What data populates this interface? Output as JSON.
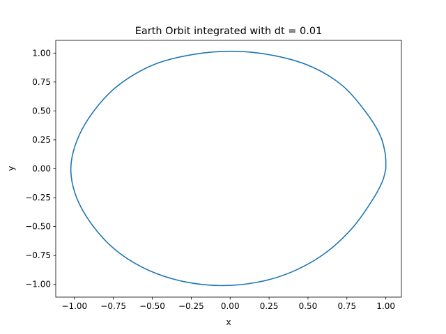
{
  "chart_data": {
    "type": "line",
    "title": "Earth Orbit integrated with dt = 0.01",
    "xlabel": "x",
    "ylabel": "y",
    "xlim": [
      -1.12,
      1.1
    ],
    "ylim": [
      -1.11,
      1.11
    ],
    "xticks": [
      -1.0,
      -0.75,
      -0.5,
      -0.25,
      0.0,
      0.25,
      0.5,
      0.75,
      1.0
    ],
    "xtick_labels": [
      "−1.00",
      "−0.75",
      "−0.50",
      "−0.25",
      "0.00",
      "0.25",
      "0.50",
      "0.75",
      "1.00"
    ],
    "yticks": [
      -1.0,
      -0.75,
      -0.5,
      -0.25,
      0.0,
      0.25,
      0.5,
      0.75,
      1.0
    ],
    "ytick_labels": [
      "−1.00",
      "−0.75",
      "−0.50",
      "−0.25",
      "0.00",
      "0.25",
      "0.50",
      "0.75",
      "1.00"
    ],
    "grid": false,
    "legend": "none",
    "series": [
      {
        "color": "#1f77b4",
        "x": [
          1.0,
          0.996,
          0.96,
          0.866,
          0.72,
          0.527,
          0.295,
          0.04,
          -0.228,
          -0.49,
          -0.719,
          -0.875,
          -0.982,
          -1.023,
          -0.986,
          -0.878,
          -0.72,
          -0.52,
          -0.3,
          -0.06,
          0.18,
          0.4,
          0.61,
          0.78,
          0.9,
          0.975,
          1.0
        ],
        "y": [
          0.0,
          0.13,
          0.3,
          0.5,
          0.72,
          0.88,
          0.975,
          1.015,
          0.99,
          0.9,
          0.72,
          0.5,
          0.25,
          0.0,
          -0.25,
          -0.5,
          -0.72,
          -0.88,
          -0.975,
          -1.01,
          -0.98,
          -0.89,
          -0.73,
          -0.52,
          -0.3,
          -0.12,
          0.0
        ]
      }
    ]
  }
}
